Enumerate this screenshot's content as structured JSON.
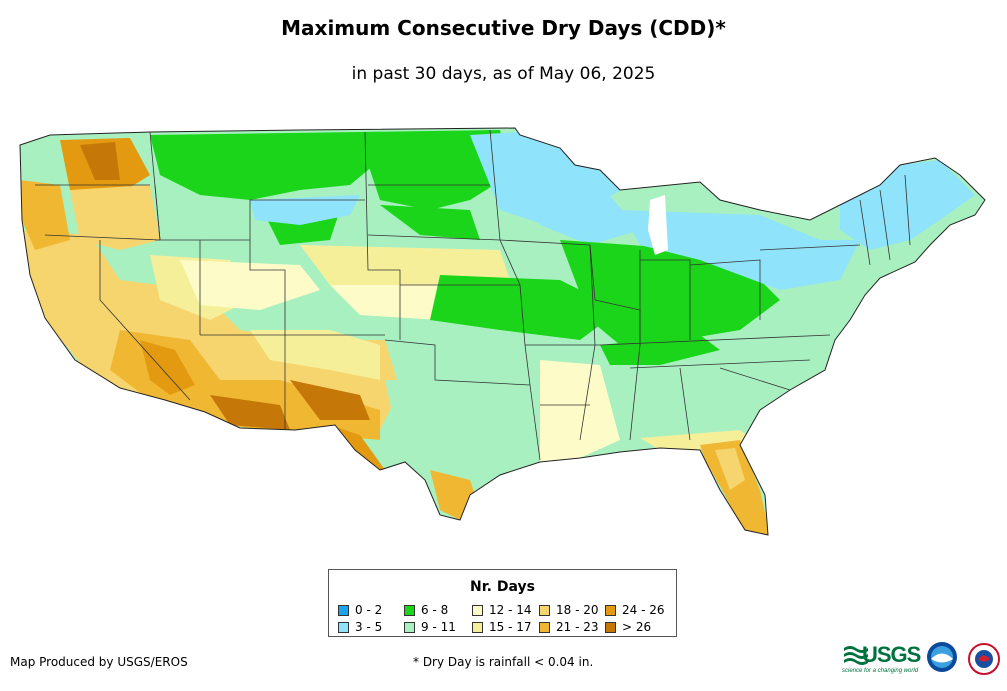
{
  "title": "Maximum Consecutive Dry Days (CDD)*",
  "subtitle": "in past 30 days, as of May 06, 2025",
  "legend": {
    "title": "Nr. Days",
    "items": [
      {
        "label": "0 - 2",
        "color": "#1aa3f0"
      },
      {
        "label": "3 - 5",
        "color": "#8fe3fb"
      },
      {
        "label": "6 - 8",
        "color": "#1ad51a"
      },
      {
        "label": "9 - 11",
        "color": "#a8f0c0"
      },
      {
        "label": "12 - 14",
        "color": "#fdfcc8"
      },
      {
        "label": "15 - 17",
        "color": "#f6ef9a"
      },
      {
        "label": "18 - 20",
        "color": "#f6d56e"
      },
      {
        "label": "21 - 23",
        "color": "#f0b832"
      },
      {
        "label": "24 - 26",
        "color": "#e49a10"
      },
      {
        "label": "> 26",
        "color": "#c57708"
      }
    ]
  },
  "footer": {
    "credit": "Map Produced by USGS/EROS",
    "note": "* Dry Day is rainfall < 0.04 in."
  },
  "logos": {
    "usgs": "USGS",
    "usgs_tagline": "science for a changing world",
    "noaa": "NOAA"
  }
}
